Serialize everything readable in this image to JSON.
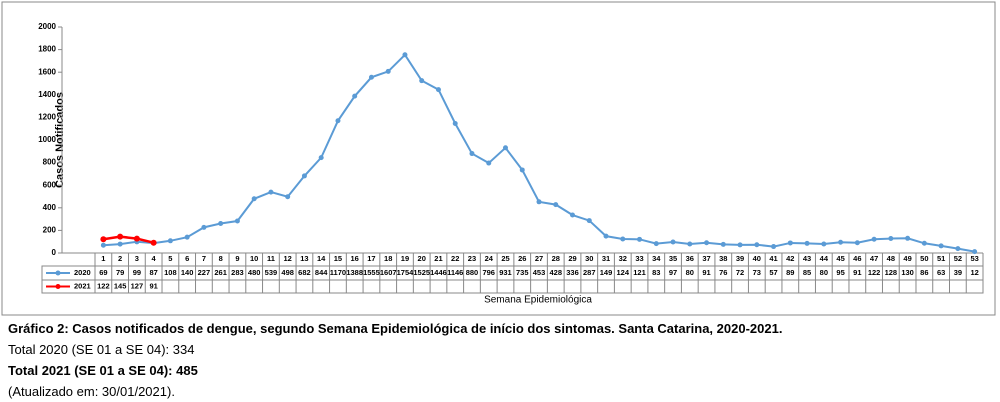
{
  "chart_data": {
    "type": "line",
    "y_label": "Casos Notificados",
    "x_label": "Semana Epidemiológica",
    "categories": [
      1,
      2,
      3,
      4,
      5,
      6,
      7,
      8,
      9,
      10,
      11,
      12,
      13,
      14,
      15,
      16,
      17,
      18,
      19,
      20,
      21,
      22,
      23,
      24,
      25,
      26,
      27,
      28,
      29,
      30,
      31,
      32,
      33,
      34,
      35,
      36,
      37,
      38,
      39,
      40,
      41,
      42,
      43,
      44,
      45,
      46,
      47,
      48,
      49,
      50,
      51,
      52,
      53
    ],
    "series": [
      {
        "name": "2020",
        "color": "#5b9bd5",
        "values": [
          69,
          79,
          99,
          87,
          108,
          140,
          227,
          261,
          283,
          480,
          539,
          498,
          682,
          844,
          1170,
          1388,
          1555,
          1607,
          1754,
          1525,
          1446,
          1146,
          880,
          796,
          931,
          735,
          453,
          428,
          336,
          287,
          149,
          124,
          121,
          83,
          97,
          80,
          91,
          76,
          72,
          73,
          57,
          89,
          85,
          80,
          95,
          91,
          122,
          128,
          130,
          86,
          63,
          39,
          12
        ]
      },
      {
        "name": "2021",
        "color": "#ff0000",
        "values": [
          122,
          145,
          127,
          91,
          null,
          null,
          null,
          null,
          null,
          null,
          null,
          null,
          null,
          null,
          null,
          null,
          null,
          null,
          null,
          null,
          null,
          null,
          null,
          null,
          null,
          null,
          null,
          null,
          null,
          null,
          null,
          null,
          null,
          null,
          null,
          null,
          null,
          null,
          null,
          null,
          null,
          null,
          null,
          null,
          null,
          null,
          null,
          null,
          null,
          null,
          null,
          null,
          null
        ]
      }
    ],
    "ylim": [
      0,
      2000
    ],
    "yticks": [
      0,
      200,
      400,
      600,
      800,
      1000,
      1200,
      1400,
      1600,
      1800,
      2000
    ],
    "grid": false
  },
  "caption": "Gráfico 2: Casos notificados de dengue, segundo Semana Epidemiológica de início dos sintomas. Santa Catarina, 2020-2021.",
  "notes": [
    "Total 2020 (SE 01 a SE 04): 334",
    "Total 2021 (SE 01 a SE 04): 485",
    "(Atualizado em: 30/01/2021)."
  ]
}
